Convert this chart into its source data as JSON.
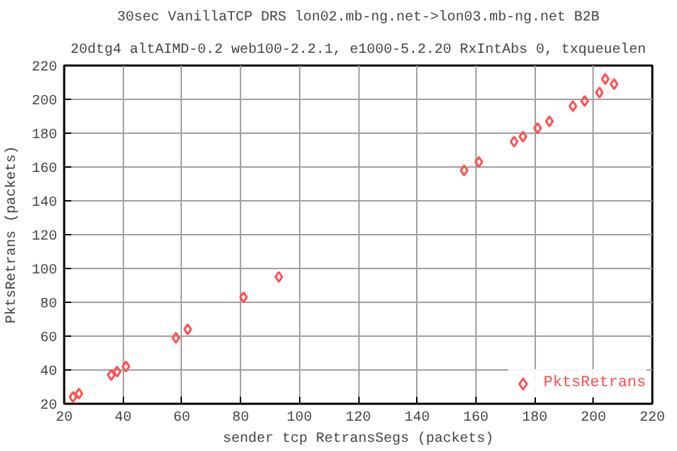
{
  "chart_data": {
    "type": "scatter",
    "title": "30sec VanillaTCP DRS lon02.mb-ng.net->lon03.mb-ng.net B2B",
    "subtitle": "20dtg4 altAIMD-0.2 web100-2.2.1, e1000-5.2.20 RxIntAbs 0, txqueuelen",
    "xlabel": "sender tcp RetransSegs (packets)",
    "ylabel": "PktsRetrans (packets)",
    "xlim": [
      20,
      220
    ],
    "ylim": [
      20,
      220
    ],
    "xticks": [
      20,
      40,
      60,
      80,
      100,
      120,
      140,
      160,
      180,
      200,
      220
    ],
    "yticks": [
      20,
      40,
      60,
      80,
      100,
      120,
      140,
      160,
      180,
      200,
      220
    ],
    "grid": true,
    "legend": "bottom right",
    "marker": "diamond",
    "x": [
      23,
      25,
      36,
      38,
      41,
      58,
      62,
      81,
      93,
      156,
      161,
      173,
      176,
      181,
      185,
      193,
      197,
      202,
      204,
      207
    ],
    "series": [
      {
        "name": "PktsRetrans",
        "color": "#ff5050",
        "values": [
          24,
          26,
          37,
          39,
          42,
          59,
          64,
          83,
          95,
          158,
          163,
          175,
          178,
          183,
          187,
          196,
          199,
          204,
          212,
          209
        ]
      }
    ]
  }
}
